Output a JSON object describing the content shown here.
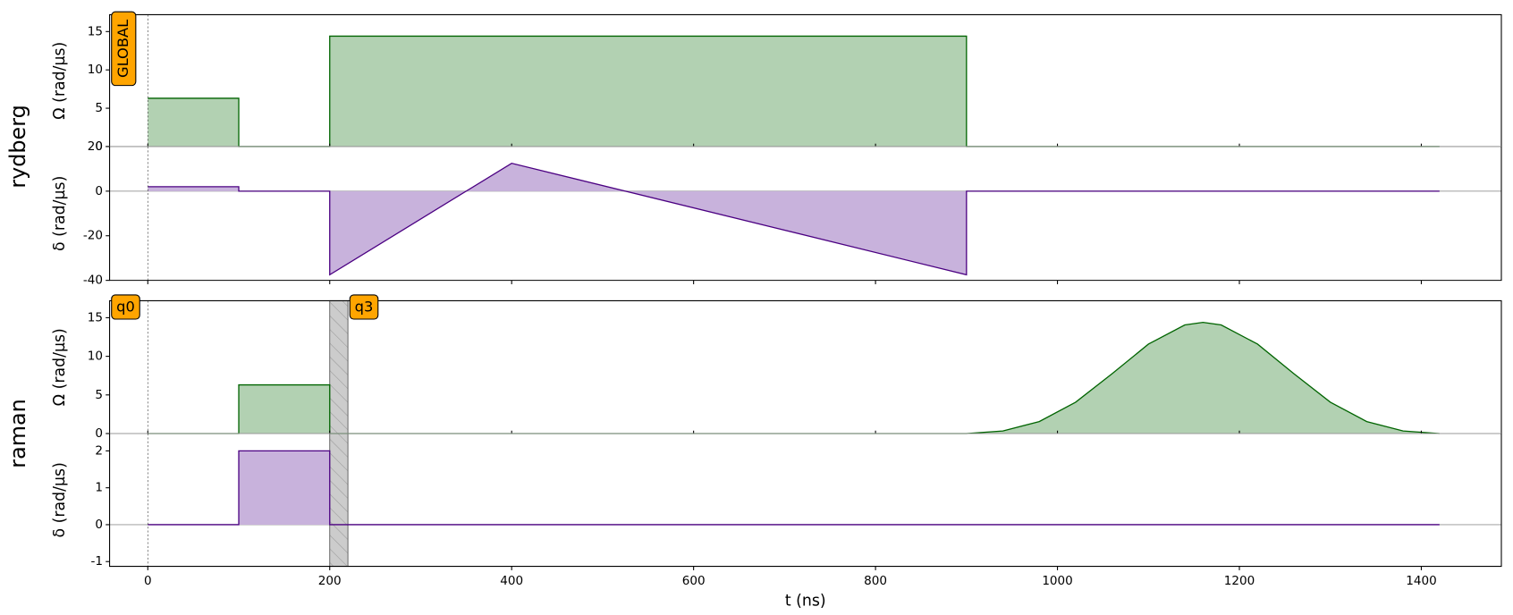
{
  "chart_data": [
    {
      "type": "area",
      "channel": "rydberg",
      "ylabel": "Ω (rad/µs)",
      "targets": [
        {
          "label": "GLOBAL"
        }
      ],
      "x": [
        0,
        100,
        100,
        200,
        200,
        900,
        900,
        1420
      ],
      "values": [
        6.3,
        6.3,
        0,
        0,
        14.4,
        14.4,
        0,
        0
      ],
      "color": "#006400",
      "fill_color": "#b2d1b2",
      "ylim": [
        0,
        17.2
      ],
      "yticks": [
        0,
        5,
        10,
        15
      ]
    },
    {
      "type": "area",
      "ylabel": "δ (rad/µs)",
      "x": [
        0,
        100,
        100,
        200,
        200,
        400,
        900,
        900,
        1420
      ],
      "values": [
        2,
        2,
        0,
        0,
        -37.5,
        12.5,
        -37.5,
        0,
        0
      ],
      "color": "#4b0082",
      "fill_color": "#c8b2dc",
      "ylim": [
        -40,
        20
      ],
      "yticks": [
        -40,
        -20,
        0,
        20
      ]
    },
    {
      "type": "area",
      "channel": "raman",
      "ylabel": "Ω (rad/µs)",
      "targets": [
        {
          "label": "q0",
          "time": 0
        },
        {
          "label": "q3",
          "time": 220
        }
      ],
      "hatch": [
        200,
        220
      ],
      "x": [
        0,
        100,
        100,
        200,
        200,
        900,
        940,
        980,
        1020,
        1060,
        1100,
        1140,
        1160,
        1180,
        1220,
        1260,
        1300,
        1340,
        1380,
        1420
      ],
      "values": [
        0,
        0,
        6.3,
        6.3,
        0,
        0,
        0.33,
        1.55,
        4.06,
        7.74,
        11.58,
        14.06,
        14.4,
        14.06,
        11.58,
        7.74,
        4.06,
        1.55,
        0.33,
        0
      ],
      "color": "#006400",
      "fill_color": "#b2d1b2",
      "ylim": [
        0,
        17.2
      ],
      "yticks": [
        0,
        5,
        10,
        15
      ]
    },
    {
      "type": "area",
      "ylabel": "δ (rad/µs)",
      "x": [
        0,
        100,
        100,
        200,
        200,
        1420
      ],
      "values": [
        0,
        0,
        2,
        2,
        0,
        0
      ],
      "color": "#4b0082",
      "fill_color": "#c8b2dc",
      "ylim": [
        -1.13,
        2.47
      ],
      "yticks": [
        -1,
        0,
        1,
        2
      ],
      "xlabel": "t (ns)",
      "xlim": [
        -42,
        1488
      ],
      "xticks": [
        0,
        200,
        400,
        600,
        800,
        1000,
        1200,
        1400
      ]
    }
  ]
}
